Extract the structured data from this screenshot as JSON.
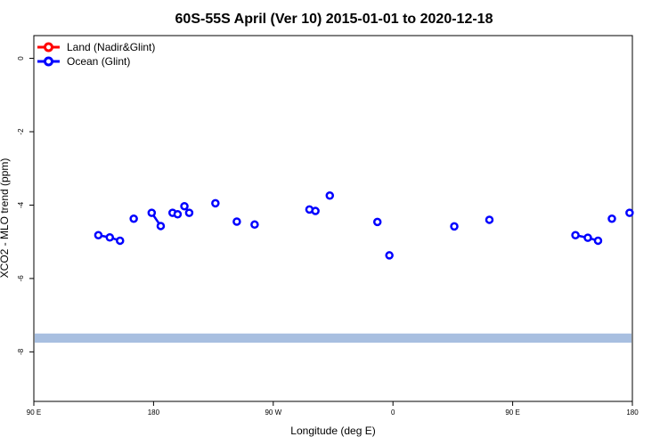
{
  "chart_data": {
    "type": "scatter",
    "title": "60S-55S April (Ver 10)   2015-01-01 to 2020-12-18",
    "xlabel": "Longitude (deg E)",
    "ylabel": "XCO2 - MLO trend (ppm)",
    "x_ticks": [
      {
        "pos": 90,
        "label": "90 E"
      },
      {
        "pos": 180,
        "label": "180"
      },
      {
        "pos": 270,
        "label": "90 W"
      },
      {
        "pos": 360,
        "label": "0"
      },
      {
        "pos": 450,
        "label": "90 E"
      },
      {
        "pos": 540,
        "label": "180"
      }
    ],
    "y_ticks": [
      0,
      -2,
      -4,
      -6,
      -8
    ],
    "xlim": [
      90,
      540
    ],
    "ylim": [
      -9.35,
      0.62
    ],
    "legend": {
      "placement": "top-left",
      "entries": [
        {
          "label": "Land (Nadir&Glint)",
          "color": "#ff0000"
        },
        {
          "label": "Ocean (Glint)",
          "color": "#0000ff"
        }
      ]
    },
    "band": {
      "y_min": -7.75,
      "y_max": -7.5,
      "color": "#a8bfe0"
    },
    "series": [
      {
        "name": "Ocean (Glint)",
        "color": "#0000ff",
        "segments": [
          [
            [
              138.5,
              -4.82
            ],
            [
              147.1,
              -4.88
            ],
            [
              154.8,
              -4.97
            ]
          ],
          [
            [
              165.1,
              -4.37
            ]
          ],
          [
            [
              178.6,
              -4.21
            ],
            [
              185.4,
              -4.57
            ]
          ],
          [
            [
              194.3,
              -4.21
            ],
            [
              198.1,
              -4.25
            ]
          ],
          [
            [
              203.2,
              -4.03
            ],
            [
              206.8,
              -4.21
            ]
          ],
          [
            [
              226.5,
              -3.95
            ]
          ],
          [
            [
              242.6,
              -4.45
            ]
          ],
          [
            [
              256.0,
              -4.53
            ]
          ],
          [
            [
              297.2,
              -4.12
            ],
            [
              301.7,
              -4.16
            ]
          ],
          [
            [
              312.5,
              -3.74
            ]
          ],
          [
            [
              348.3,
              -4.46
            ]
          ],
          [
            [
              357.3,
              -5.37
            ]
          ],
          [
            [
              406.1,
              -4.58
            ]
          ],
          [
            [
              432.5,
              -4.4
            ]
          ],
          [
            [
              497.2,
              -4.82
            ],
            [
              506.5,
              -4.89
            ],
            [
              514.2,
              -4.97
            ]
          ],
          [
            [
              524.6,
              -4.37
            ]
          ],
          [
            [
              537.9,
              -4.21
            ]
          ]
        ]
      }
    ]
  }
}
